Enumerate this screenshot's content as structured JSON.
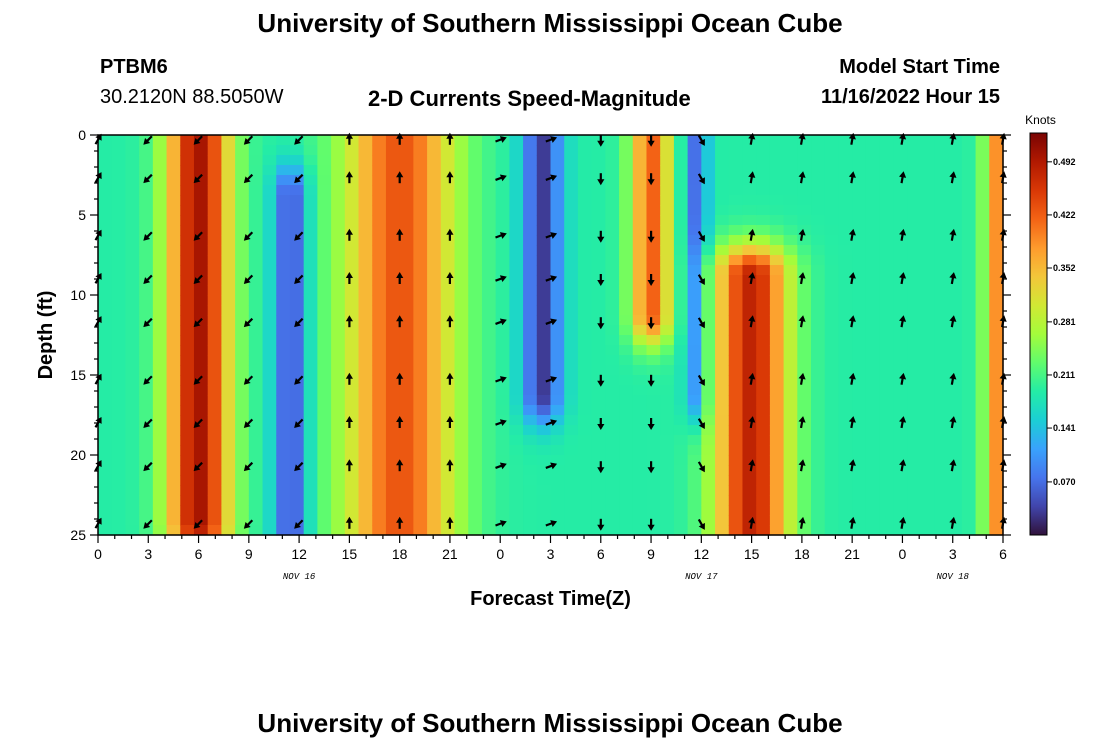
{
  "header": {
    "title": "University of Southern Mississippi Ocean Cube",
    "station_id": "PTBM6",
    "coordinates": "30.2120N  88.5050W",
    "subtitle": "2-D Currents Speed-Magnitude",
    "model_start_label": "Model Start Time",
    "model_start_value": "11/16/2022 Hour 15"
  },
  "footer": {
    "title": "University of Southern Mississippi Ocean Cube"
  },
  "colors": {
    "scale": [
      "#30123b",
      "#4145ab",
      "#4675ed",
      "#39a2fc",
      "#1bcfd4",
      "#24eca6",
      "#61fc6c",
      "#a4fc3b",
      "#d1e834",
      "#f3c63a",
      "#fe9b2d",
      "#f36315",
      "#d93806",
      "#b11901",
      "#7a0403"
    ]
  },
  "chart_data": {
    "type": "heatmap",
    "title": "2-D Currents Speed-Magnitude",
    "xlabel": "Forecast Time(Z)",
    "ylabel": "Depth (ft)",
    "x_range_hours": [
      0,
      54
    ],
    "x_ticks": [
      "0",
      "3",
      "6",
      "9",
      "12",
      "15",
      "18",
      "21",
      "0",
      "3",
      "6",
      "9",
      "12",
      "15",
      "18",
      "21",
      "0",
      "3",
      "6"
    ],
    "day_labels": [
      {
        "label": "NOV 16",
        "hour": 12
      },
      {
        "label": "NOV 17",
        "hour": 36
      },
      {
        "label": "NOV 18",
        "hour": 51
      }
    ],
    "y_range": [
      0,
      25
    ],
    "y_ticks": [
      "0",
      "5",
      "10",
      "15",
      "20",
      "25"
    ],
    "colorbar": {
      "unit": "Knots",
      "min": 0.0,
      "max": 0.53,
      "ticks": [
        "0.492",
        "0.422",
        "0.352",
        "0.281",
        "0.211",
        "0.141",
        "0.070"
      ],
      "tick_values": [
        0.492,
        0.422,
        0.352,
        0.281,
        0.211,
        0.141,
        0.07
      ]
    },
    "speed_features": [
      {
        "name": "early max",
        "hour_center": 6,
        "hour_width": 1.9,
        "depth_from": 0,
        "depth_to": 23,
        "speed": 0.5
      },
      {
        "name": "min near 12Z",
        "hour_center": 11.5,
        "hour_width": 1.0,
        "depth_from": 5,
        "depth_to": 25,
        "speed": 0.04
      },
      {
        "name": "afternoon max",
        "hour_center": 18,
        "hour_width": 3.3,
        "depth_from": 0,
        "depth_to": 24,
        "speed": 0.43
      },
      {
        "name": "min near 3Z",
        "hour_center": 26.5,
        "hour_width": 1.2,
        "depth_from": 0,
        "depth_to": 15,
        "speed": 0.03
      },
      {
        "name": "surface max near 9Z",
        "hour_center": 33,
        "hour_width": 1.2,
        "depth_from": 0,
        "depth_to": 10,
        "speed": 0.42
      },
      {
        "name": "min near 12Z day 2",
        "hour_center": 35.7,
        "hour_width": 0.7,
        "depth_from": 0,
        "depth_to": 15,
        "speed": 0.07
      },
      {
        "name": "subsurface max near 15Z",
        "hour_center": 39,
        "hour_width": 2.2,
        "depth_from": 10,
        "depth_to": 24,
        "speed": 0.48
      },
      {
        "name": "late surface max",
        "hour_center": 54,
        "hour_width": 1.0,
        "depth_from": 0,
        "depth_to": 25,
        "speed": 0.42
      }
    ],
    "direction_arrows": {
      "depths_ft": [
        0.3,
        2.7,
        6.3,
        9.0,
        11.7,
        15.3,
        18.0,
        20.7,
        24.3
      ],
      "times_hours": [
        0,
        3,
        6,
        9,
        12,
        15,
        18,
        21,
        24,
        27,
        30,
        33,
        36,
        39,
        42,
        45,
        48,
        51,
        54
      ],
      "phases": [
        {
          "hour_from": 0,
          "hour_to": 0.5,
          "direction_deg": 30
        },
        {
          "hour_from": 2,
          "hour_to": 12.5,
          "direction_deg": 225
        },
        {
          "hour_from": 14,
          "hour_to": 22,
          "direction_deg": 0
        },
        {
          "hour_from": 23,
          "hour_to": 28,
          "direction_deg": 70
        },
        {
          "hour_from": 29,
          "hour_to": 33.5,
          "direction_deg": 180
        },
        {
          "hour_from": 35,
          "hour_to": 36.5,
          "direction_deg": 150
        },
        {
          "hour_from": 38,
          "hour_to": 54,
          "direction_deg": 10
        }
      ]
    }
  }
}
